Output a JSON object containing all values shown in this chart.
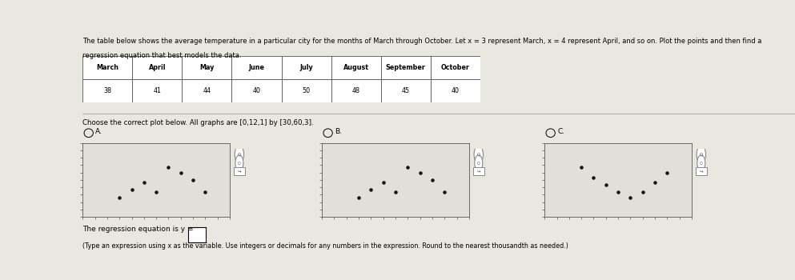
{
  "title_line1": "The table below shows the average temperature in a particular city for the months of March through October. Let x = 3 represent March, x = 4 represent April, and so on. Plot the points and then find a",
  "title_line2": "regression equation that best models the data.",
  "table_headers": [
    "March",
    "April",
    "May",
    "June",
    "July",
    "August",
    "September",
    "October"
  ],
  "table_values": [
    38,
    41,
    44,
    40,
    50,
    48,
    45,
    40
  ],
  "x_values": [
    3,
    4,
    5,
    6,
    7,
    8,
    9,
    10
  ],
  "choose_text": "Choose the correct plot below. All graphs are [0,12,1] by [30,60,3].",
  "regression_text": "The regression equation is y =",
  "note_text": "(Type an expression using x as the variable. Use integers or decimals for any numbers in the expression. Round to the nearest thousandth as needed.)",
  "bg_main": "#e8e8e0",
  "bg_header": "#1a4a2a",
  "dot_color": "#111111",
  "plot_bg": "#e0e0d8",
  "xlim": [
    0,
    12
  ],
  "ylim": [
    30,
    60
  ],
  "yd_A": [
    38,
    41,
    44,
    40,
    50,
    48,
    45,
    40
  ],
  "yd_B": [
    38,
    41,
    44,
    40,
    50,
    48,
    45,
    40
  ],
  "yd_C_x": [
    3,
    4,
    5,
    6,
    7,
    8,
    9,
    10
  ],
  "yd_C": [
    50,
    46,
    43,
    40,
    38,
    40,
    44,
    48
  ]
}
